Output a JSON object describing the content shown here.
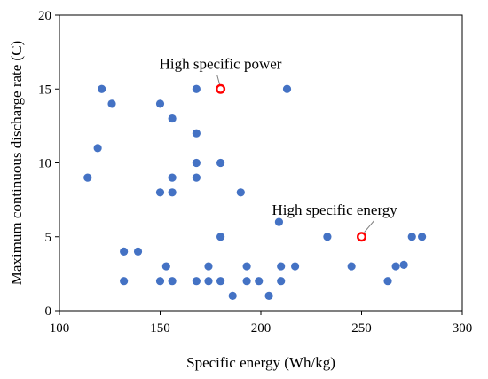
{
  "chart_data": {
    "type": "scatter",
    "xlabel": "Specific energy (Wh/kg)",
    "ylabel": "Maximum continuous discharge rate (C)",
    "xlim": [
      100,
      300
    ],
    "ylim": [
      0,
      20
    ],
    "xticks": [
      "100",
      "150",
      "200",
      "250",
      "300"
    ],
    "yticks": [
      "0",
      "5",
      "10",
      "15",
      "20"
    ],
    "grid": false,
    "point_color": "#4472C4",
    "highlight_color": "#FF0000",
    "series": [
      {
        "points": [
          [
            114,
            9
          ],
          [
            119,
            11
          ],
          [
            121,
            15
          ],
          [
            126,
            14
          ],
          [
            132,
            4
          ],
          [
            132,
            2
          ],
          [
            139,
            4
          ],
          [
            150,
            14
          ],
          [
            150,
            8
          ],
          [
            150,
            2
          ],
          [
            153,
            3
          ],
          [
            156,
            13
          ],
          [
            156,
            9
          ],
          [
            156,
            8
          ],
          [
            156,
            2
          ],
          [
            168,
            15
          ],
          [
            168,
            12
          ],
          [
            168,
            10
          ],
          [
            168,
            9
          ],
          [
            168,
            2
          ],
          [
            174,
            3
          ],
          [
            174,
            2
          ],
          [
            180,
            10
          ],
          [
            180,
            5
          ],
          [
            180,
            2
          ],
          [
            186,
            1
          ],
          [
            190,
            8
          ],
          [
            193,
            3
          ],
          [
            193,
            2
          ],
          [
            199,
            2
          ],
          [
            204,
            1
          ],
          [
            209,
            6
          ],
          [
            210,
            3
          ],
          [
            210,
            2
          ],
          [
            213,
            15
          ],
          [
            217,
            3
          ],
          [
            233,
            5
          ],
          [
            245,
            3
          ],
          [
            263,
            2
          ],
          [
            267,
            3
          ],
          [
            271,
            3.1
          ],
          [
            275,
            5
          ],
          [
            280,
            5
          ]
        ]
      }
    ],
    "annotations": [
      {
        "text": "High specific power",
        "x": 180,
        "y": 15
      },
      {
        "text": "High specific energy",
        "x": 250,
        "y": 5
      }
    ]
  }
}
